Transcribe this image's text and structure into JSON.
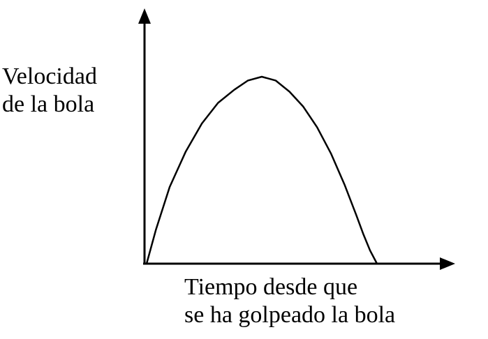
{
  "chart_data": {
    "type": "line",
    "title": "",
    "ylabel_lines": [
      "Velocidad",
      "de la bola"
    ],
    "xlabel_lines": [
      "Tiempo desde que",
      "se ha golpeado la bola"
    ],
    "ticks": false,
    "grid": false,
    "legend": false,
    "xlim": [
      0,
      1
    ],
    "ylim": [
      0,
      1
    ],
    "series": [
      {
        "x": [
          0.0,
          0.04,
          0.1,
          0.17,
          0.24,
          0.31,
          0.38,
          0.44,
          0.5,
          0.56,
          0.62,
          0.68,
          0.74,
          0.8,
          0.86,
          0.91,
          0.94,
          0.97,
          1.0
        ],
        "y": [
          0.0,
          0.18,
          0.41,
          0.6,
          0.75,
          0.86,
          0.93,
          0.98,
          1.0,
          0.98,
          0.92,
          0.84,
          0.73,
          0.59,
          0.42,
          0.26,
          0.16,
          0.07,
          0.0
        ]
      }
    ],
    "colors": {
      "axis": "#000000",
      "curve": "#000000",
      "background": "#ffffff"
    }
  }
}
